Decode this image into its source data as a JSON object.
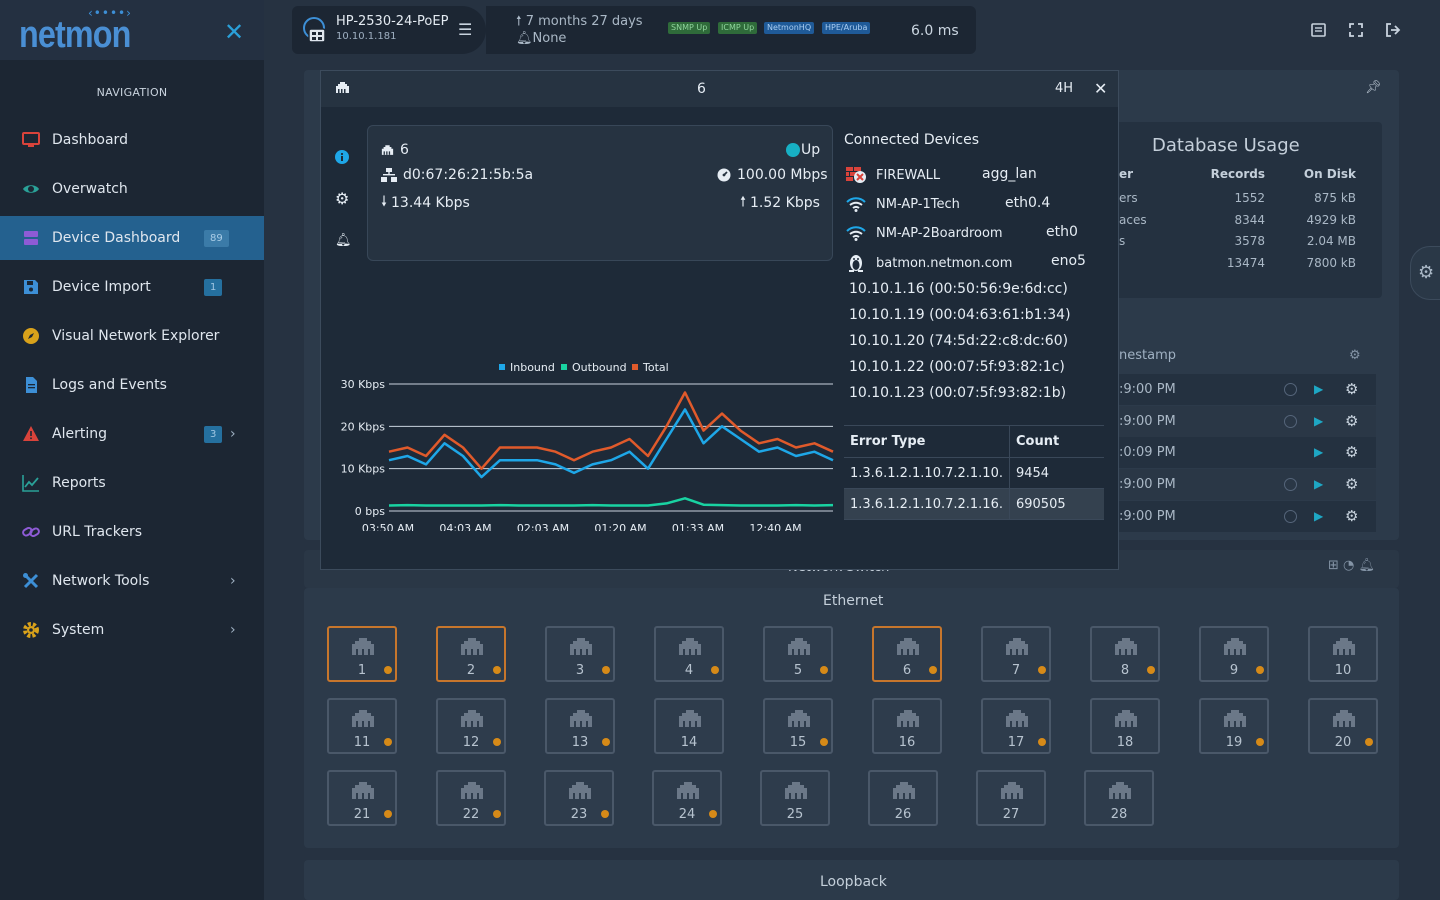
{
  "app": {
    "logo": "netmon"
  },
  "sidebar": {
    "heading": "NAVIGATION",
    "items": [
      {
        "label": "Dashboard",
        "icon": "monitor-icon",
        "color": "#d9433b"
      },
      {
        "label": "Overwatch",
        "icon": "eye-icon",
        "color": "#2aa198"
      },
      {
        "label": "Device Dashboard",
        "icon": "server-icon",
        "color": "#8e5bd6",
        "badge": "89",
        "active": true
      },
      {
        "label": "Device Import",
        "icon": "save-icon",
        "color": "#3d8fd6",
        "badge": "1"
      },
      {
        "label": "Visual Network Explorer",
        "icon": "compass-icon",
        "color": "#d9a21b"
      },
      {
        "label": "Logs and Events",
        "icon": "file-icon",
        "color": "#3d8fd6"
      },
      {
        "label": "Alerting",
        "icon": "warning-icon",
        "color": "#d9433b",
        "badge": "3",
        "chevron": true
      },
      {
        "label": "Reports",
        "icon": "chart-line-icon",
        "color": "#2aa198"
      },
      {
        "label": "URL Trackers",
        "icon": "link-icon",
        "color": "#8e5bd6"
      },
      {
        "label": "Network Tools",
        "icon": "tools-icon",
        "color": "#3d8fd6",
        "chevron": true
      },
      {
        "label": "System",
        "icon": "cog-icon",
        "color": "#d9a21b",
        "chevron": true
      }
    ]
  },
  "device": {
    "name": "HP-2530-24-PoEP",
    "ip": "10.10.1.181",
    "uptime": "7 months 27 days",
    "alerts": "None",
    "tags": [
      {
        "label": "SNMP Up",
        "bg": "#2f6b3a",
        "fg": "#8fd49c"
      },
      {
        "label": "ICMP Up",
        "bg": "#2f6b3a",
        "fg": "#8fd49c"
      },
      {
        "label": "NetmonHQ",
        "bg": "#1f5a98",
        "fg": "#a9cdf2"
      },
      {
        "label": "HPE/Aruba",
        "bg": "#1f5a98",
        "fg": "#a9cdf2"
      }
    ],
    "latency": "6.0 ms"
  },
  "background": {
    "db_title": "Database Usage",
    "db_headers": [
      "er",
      "Records",
      "On Disk"
    ],
    "db_rows": [
      [
        "ers",
        "1552",
        "875 kB"
      ],
      [
        "aces",
        "8344",
        "4929 kB"
      ],
      [
        "s",
        "3578",
        "2.04 MB"
      ],
      [
        "",
        "13474",
        "7800 kB"
      ]
    ],
    "timestamp_header": "nestamp",
    "timestamps": [
      ":9:00 PM",
      ":9:00 PM",
      ":0:09 PM",
      ":9:00 PM",
      ":9:00 PM"
    ],
    "switch_title": "Network Switch",
    "ethernet_label": "Ethernet",
    "loopback_label": "Loopback"
  },
  "ports": [
    {
      "n": "1",
      "warn": true,
      "sel": true
    },
    {
      "n": "2",
      "warn": true,
      "sel": true
    },
    {
      "n": "3",
      "warn": true
    },
    {
      "n": "4",
      "warn": true
    },
    {
      "n": "5",
      "warn": true
    },
    {
      "n": "6",
      "warn": true,
      "sel": true
    },
    {
      "n": "7",
      "warn": true
    },
    {
      "n": "8",
      "warn": true
    },
    {
      "n": "9",
      "warn": true
    },
    {
      "n": "10",
      "warn": false
    },
    {
      "n": "11",
      "warn": true
    },
    {
      "n": "12",
      "warn": true
    },
    {
      "n": "13",
      "warn": true
    },
    {
      "n": "14",
      "warn": false
    },
    {
      "n": "15",
      "warn": true
    },
    {
      "n": "16",
      "warn": false
    },
    {
      "n": "17",
      "warn": true
    },
    {
      "n": "18",
      "warn": false
    },
    {
      "n": "19",
      "warn": true
    },
    {
      "n": "20",
      "warn": true
    },
    {
      "n": "21",
      "warn": true
    },
    {
      "n": "22",
      "warn": true
    },
    {
      "n": "23",
      "warn": true
    },
    {
      "n": "24",
      "warn": true
    },
    {
      "n": "25",
      "warn": false
    },
    {
      "n": "26",
      "warn": false
    },
    {
      "n": "27",
      "warn": false
    },
    {
      "n": "28",
      "warn": false
    }
  ],
  "modal": {
    "title": "6",
    "range": "4H",
    "port": {
      "name": "6",
      "status": "Up",
      "mac": "d0:67:26:21:5b:5a",
      "speed": "100.00 Mbps",
      "in_rate": "13.44 Kbps",
      "out_rate": "1.52 Kbps"
    },
    "connected_title": "Connected Devices",
    "connected": [
      {
        "name": "FIREWALL",
        "iface": "agg_lan",
        "icon": "firewall-icon"
      },
      {
        "name": "NM-AP-1Tech",
        "iface": "eth0.4",
        "icon": "wifi-icon"
      },
      {
        "name": "NM-AP-2Boardroom",
        "iface": "eth0",
        "icon": "wifi-icon"
      },
      {
        "name": "batmon.netmon.com",
        "iface": "eno5",
        "icon": "linux-icon"
      }
    ],
    "macs": [
      "10.10.1.16 (00:50:56:9e:6d:cc)",
      "10.10.1.19 (00:04:63:61:b1:34)",
      "10.10.1.20 (74:5d:22:c8:dc:60)",
      "10.10.1.22 (00:07:5f:93:82:1c)",
      "10.10.1.23 (00:07:5f:93:82:1b)"
    ],
    "errors": {
      "headers": [
        "Error Type",
        "Count"
      ],
      "rows": [
        [
          "1.3.6.1.2.1.10.7.2.1.10.",
          "9454"
        ],
        [
          "1.3.6.1.2.1.10.7.2.1.16.",
          "690505"
        ]
      ]
    }
  },
  "chart_data": {
    "type": "line",
    "x_ticks": [
      "03:50 AM",
      "04:03 AM",
      "02:03 AM",
      "01:20 AM",
      "01:33 AM",
      "12:40 AM"
    ],
    "y_ticks": [
      "0 bps",
      "10 Kbps",
      "20 Kbps",
      "30 Kbps"
    ],
    "ylim": [
      0,
      30
    ],
    "unit": "Kbps",
    "series": [
      {
        "name": "Inbound",
        "color": "#1ea7e8",
        "values": [
          12,
          13,
          11,
          16,
          13,
          8,
          12,
          12,
          12,
          11,
          9,
          11,
          12,
          14,
          10,
          17,
          24,
          16,
          20,
          17,
          14,
          15,
          13,
          14,
          12
        ]
      },
      {
        "name": "Outbound",
        "color": "#19d3a2",
        "values": [
          1.3,
          1.4,
          1.3,
          1.3,
          1.3,
          1.3,
          1.4,
          1.3,
          1.3,
          1.3,
          1.3,
          1.4,
          1.3,
          1.3,
          1.3,
          1.8,
          3.0,
          1.5,
          1.4,
          1.3,
          1.3,
          1.3,
          1.4,
          1.3,
          1.4
        ]
      },
      {
        "name": "Total",
        "color": "#e05a2b",
        "values": [
          14,
          15,
          13,
          18,
          15,
          10,
          15,
          15,
          15,
          14,
          12,
          14,
          15,
          17,
          13,
          20,
          28,
          19,
          23,
          19,
          16,
          17,
          15,
          16,
          14
        ]
      }
    ]
  }
}
